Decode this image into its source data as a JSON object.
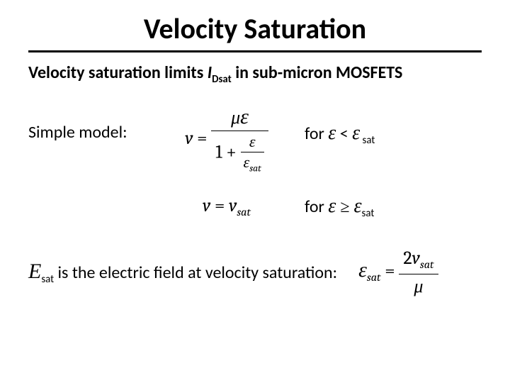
{
  "colors": {
    "text": "#000000",
    "background": "#ffffff",
    "rule": "#000000"
  },
  "typography": {
    "title_fontsize_pt": 40,
    "body_fontsize_pt": 24,
    "equation_fontsize_pt": 26,
    "family_body": "Calibri",
    "family_math": "Cambria / Times New Roman",
    "title_weight": "700",
    "subhead_weight": "700"
  },
  "title": "Velocity Saturation",
  "subhead": {
    "pre": "Velocity saturation limits ",
    "var": "I",
    "var_sub": "Dsat",
    "post": " in sub-micron MOSFETS"
  },
  "model_label": "Simple model:",
  "eq1": {
    "lhs": "v",
    "eq": " = ",
    "num_mu": "μ",
    "num_eps": "ε",
    "den_one_plus": "1 + ",
    "den_frac_num": "ε",
    "den_frac_den_eps": "ε",
    "den_frac_den_sub": "sat"
  },
  "cond1": {
    "for": "for ",
    "eps": "ε",
    "lt": " < ",
    "eps2": "ε",
    "sub": " sat"
  },
  "eq2": {
    "lhs": "v",
    "eq": " = ",
    "rhs_v": "v",
    "rhs_sub": "sat"
  },
  "cond2": {
    "for": "for ",
    "eps": "ε",
    "ge": " ≥ ",
    "eps2": "ε",
    "sub": "sat"
  },
  "foot": {
    "E": "E",
    "E_sub": "sat",
    "text": " is the electric field at velocity saturation:"
  },
  "eq3": {
    "lhs_eps": "ε",
    "lhs_sub": "sat",
    "eq": " = ",
    "num_2": "2",
    "num_v": "v",
    "num_sub": "sat",
    "den_mu": "μ"
  }
}
